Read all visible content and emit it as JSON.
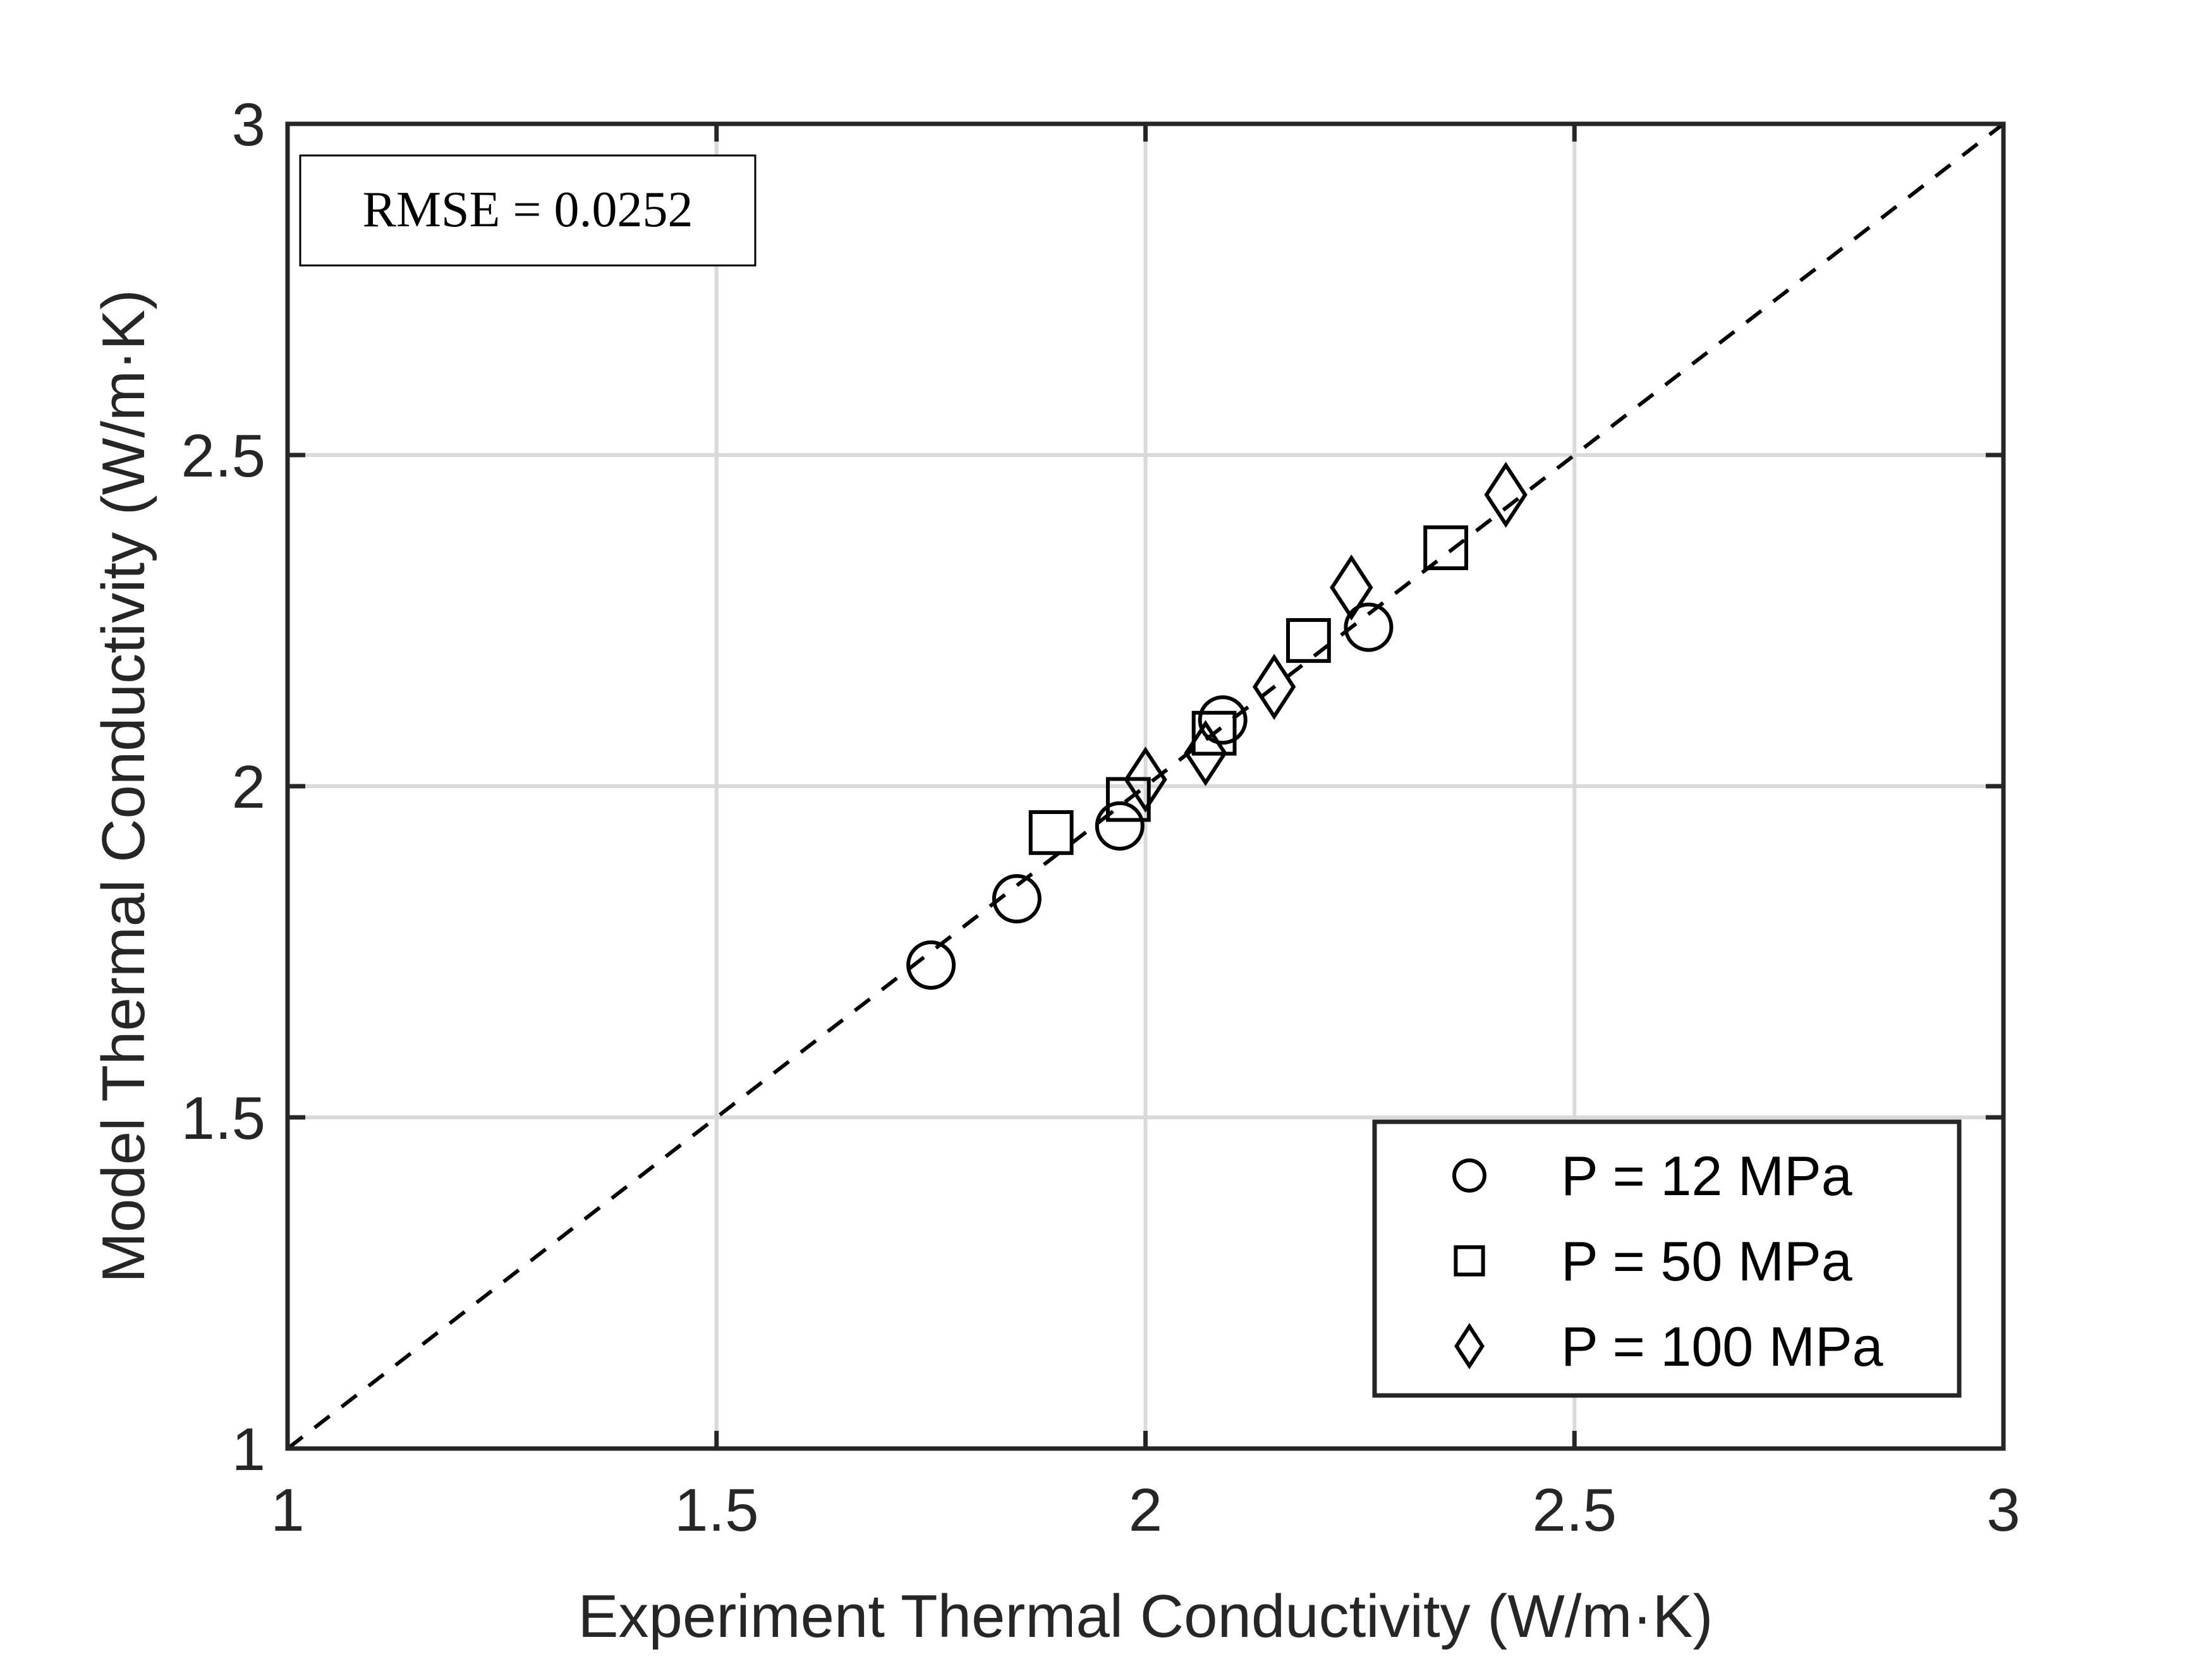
{
  "chart_data": {
    "type": "scatter",
    "title": "",
    "xlabel": "Experiment Thermal Conductivity (W/m·K)",
    "ylabel": "Model Thermal Conductivity (W/m·K)",
    "xlim": [
      1,
      3
    ],
    "ylim": [
      1,
      3
    ],
    "xticks": [
      "1",
      "1.5",
      "2",
      "2.5",
      "3"
    ],
    "yticks": [
      "1",
      "1.5",
      "2",
      "2.5",
      "3"
    ],
    "grid": true,
    "legend_position": "bottom-right",
    "annotation": "RMSE = 0.0252",
    "reference_line": {
      "style": "dashed",
      "from": [
        1,
        1
      ],
      "to": [
        3,
        3
      ]
    },
    "series": [
      {
        "name": "P = 12 MPa",
        "marker": "circle",
        "x": [
          1.75,
          1.85,
          1.97,
          2.09,
          2.26
        ],
        "y": [
          1.73,
          1.83,
          1.94,
          2.1,
          2.24
        ]
      },
      {
        "name": "P = 50 MPa",
        "marker": "square",
        "x": [
          1.89,
          1.98,
          2.08,
          2.19,
          2.35
        ],
        "y": [
          1.93,
          1.98,
          2.08,
          2.22,
          2.36
        ]
      },
      {
        "name": "P = 100 MPa",
        "marker": "diamond",
        "x": [
          2.0,
          2.07,
          2.15,
          2.24,
          2.42
        ],
        "y": [
          2.01,
          2.05,
          2.15,
          2.3,
          2.44
        ]
      }
    ],
    "colors": {
      "axis": "#262626",
      "grid": "#d9d9d9",
      "marker": "#000000",
      "reference_line": "#000000"
    }
  }
}
